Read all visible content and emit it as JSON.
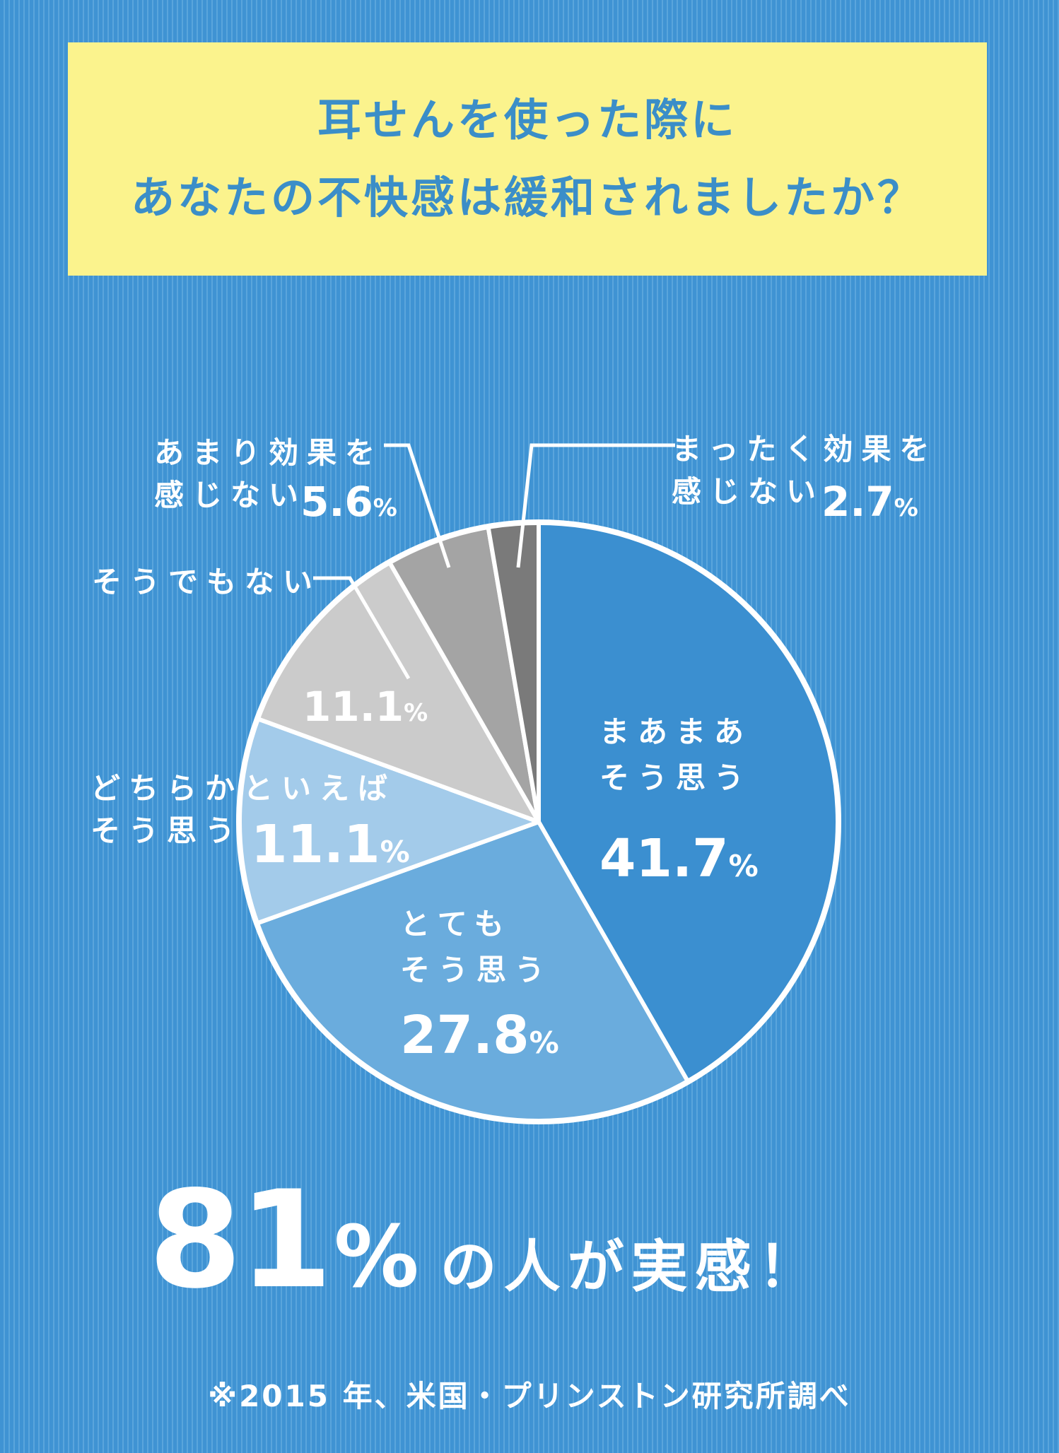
{
  "title": {
    "line1": "耳せんを使った際に",
    "line2": "あなたの不快感は緩和されましたか？"
  },
  "chart_data": {
    "type": "pie",
    "slices": [
      {
        "name_lines": [
          "まあまあ",
          "そう思う"
        ],
        "value": 41.7,
        "label": "41.7",
        "color": "#3b8fd0"
      },
      {
        "name_lines": [
          "とても",
          "そう思う"
        ],
        "value": 27.8,
        "label": "27.8",
        "color": "#6aacdd"
      },
      {
        "name_lines": [
          "どちらかといえば",
          "そう思う"
        ],
        "value": 11.1,
        "label": "11.1",
        "color": "#a3cbea"
      },
      {
        "name_lines": [
          "そうでもない"
        ],
        "value": 11.1,
        "label": "11.1",
        "color": "#cbcbcb"
      },
      {
        "name_lines": [
          "あまり効果を",
          "感じない"
        ],
        "value": 5.6,
        "label": "5.6",
        "color": "#a4a4a4"
      },
      {
        "name_lines": [
          "まったく効果を",
          "感じない"
        ],
        "value": 2.7,
        "label": "2.7",
        "color": "#7a7a7a"
      }
    ],
    "percent_symbol": "%",
    "start": "12 o'clock",
    "direction": "clockwise"
  },
  "summary": {
    "number": "81",
    "percent": "%",
    "text": "の人が実感！"
  },
  "source": "※2015 年、米国・プリンストン研究所調べ"
}
